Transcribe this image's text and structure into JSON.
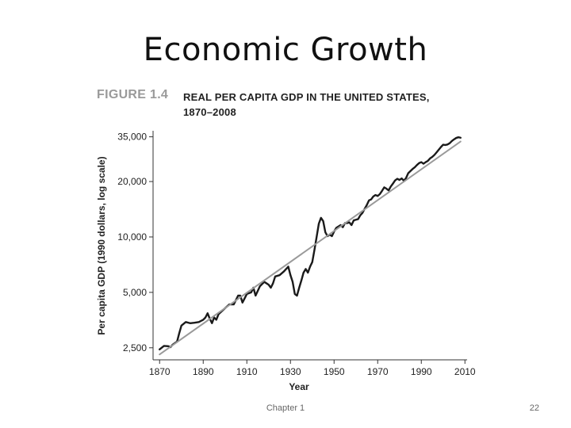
{
  "slide": {
    "title": "Economic Growth",
    "footer": "Chapter 1",
    "page_number": "22"
  },
  "figure": {
    "label": "FIGURE 1.4",
    "title_line1": "REAL PER CAPITA GDP IN THE UNITED STATES,",
    "title_line2": "1870–2008"
  },
  "chart_data": {
    "type": "line",
    "title": "REAL PER CAPITA GDP IN THE UNITED STATES, 1870–2008",
    "xlabel": "Year",
    "ylabel": "Per capita GDP (1990 dollars, log scale)",
    "y_scale": "log",
    "xlim": [
      1867,
      2011
    ],
    "ylim": [
      2150,
      37000
    ],
    "x_ticks": [
      1870,
      1890,
      1910,
      1930,
      1950,
      1970,
      1990,
      2010
    ],
    "x_tick_labels": [
      "1870",
      "1890",
      "1910",
      "1930",
      "1950",
      "1970",
      "1990",
      "2010"
    ],
    "y_ticks": [
      2500,
      5000,
      10000,
      20000,
      35000
    ],
    "y_tick_labels": [
      "2,500",
      "5,000",
      "10,000",
      "20,000",
      "35,000"
    ],
    "grid": false,
    "series": [
      {
        "style": "actual",
        "color": "#1a1a1a",
        "points": [
          [
            1870,
            2450
          ],
          [
            1872,
            2560
          ],
          [
            1874,
            2550
          ],
          [
            1875,
            2520
          ],
          [
            1876,
            2600
          ],
          [
            1878,
            2700
          ],
          [
            1879,
            3000
          ],
          [
            1880,
            3300
          ],
          [
            1882,
            3450
          ],
          [
            1884,
            3400
          ],
          [
            1886,
            3420
          ],
          [
            1888,
            3450
          ],
          [
            1890,
            3550
          ],
          [
            1891,
            3650
          ],
          [
            1892,
            3850
          ],
          [
            1893,
            3600
          ],
          [
            1894,
            3400
          ],
          [
            1895,
            3650
          ],
          [
            1896,
            3550
          ],
          [
            1897,
            3800
          ],
          [
            1899,
            4000
          ],
          [
            1900,
            4100
          ],
          [
            1902,
            4300
          ],
          [
            1904,
            4300
          ],
          [
            1906,
            4800
          ],
          [
            1907,
            4800
          ],
          [
            1908,
            4400
          ],
          [
            1910,
            4900
          ],
          [
            1912,
            5000
          ],
          [
            1913,
            5300
          ],
          [
            1914,
            4800
          ],
          [
            1916,
            5400
          ],
          [
            1918,
            5700
          ],
          [
            1919,
            5600
          ],
          [
            1920,
            5500
          ],
          [
            1921,
            5300
          ],
          [
            1922,
            5600
          ],
          [
            1923,
            6100
          ],
          [
            1925,
            6200
          ],
          [
            1927,
            6500
          ],
          [
            1929,
            6900
          ],
          [
            1930,
            6200
          ],
          [
            1931,
            5700
          ],
          [
            1932,
            4900
          ],
          [
            1933,
            4800
          ],
          [
            1934,
            5300
          ],
          [
            1935,
            5800
          ],
          [
            1936,
            6400
          ],
          [
            1937,
            6700
          ],
          [
            1938,
            6400
          ],
          [
            1939,
            6900
          ],
          [
            1940,
            7300
          ],
          [
            1941,
            8500
          ],
          [
            1942,
            10000
          ],
          [
            1943,
            11800
          ],
          [
            1944,
            12700
          ],
          [
            1945,
            12200
          ],
          [
            1946,
            10600
          ],
          [
            1947,
            10100
          ],
          [
            1948,
            10300
          ],
          [
            1949,
            10100
          ],
          [
            1950,
            10700
          ],
          [
            1951,
            11200
          ],
          [
            1952,
            11400
          ],
          [
            1953,
            11600
          ],
          [
            1954,
            11300
          ],
          [
            1955,
            11900
          ],
          [
            1956,
            11900
          ],
          [
            1957,
            12000
          ],
          [
            1958,
            11600
          ],
          [
            1959,
            12300
          ],
          [
            1960,
            12400
          ],
          [
            1961,
            12500
          ],
          [
            1962,
            13100
          ],
          [
            1963,
            13500
          ],
          [
            1964,
            14200
          ],
          [
            1965,
            14900
          ],
          [
            1966,
            15800
          ],
          [
            1967,
            16000
          ],
          [
            1968,
            16600
          ],
          [
            1969,
            16900
          ],
          [
            1970,
            16700
          ],
          [
            1971,
            17100
          ],
          [
            1972,
            17800
          ],
          [
            1973,
            18600
          ],
          [
            1974,
            18300
          ],
          [
            1975,
            17900
          ],
          [
            1976,
            18800
          ],
          [
            1977,
            19500
          ],
          [
            1978,
            20300
          ],
          [
            1979,
            20700
          ],
          [
            1980,
            20400
          ],
          [
            1981,
            20800
          ],
          [
            1982,
            20200
          ],
          [
            1983,
            20900
          ],
          [
            1984,
            22200
          ],
          [
            1985,
            22800
          ],
          [
            1986,
            23400
          ],
          [
            1987,
            23900
          ],
          [
            1988,
            24600
          ],
          [
            1989,
            25200
          ],
          [
            1990,
            25500
          ],
          [
            1991,
            25000
          ],
          [
            1992,
            25500
          ],
          [
            1993,
            25900
          ],
          [
            1994,
            26700
          ],
          [
            1995,
            27200
          ],
          [
            1996,
            27900
          ],
          [
            1997,
            28800
          ],
          [
            1998,
            29800
          ],
          [
            1999,
            30800
          ],
          [
            2000,
            31700
          ],
          [
            2001,
            31600
          ],
          [
            2002,
            31800
          ],
          [
            2003,
            32300
          ],
          [
            2004,
            33200
          ],
          [
            2005,
            33900
          ],
          [
            2006,
            34500
          ],
          [
            2007,
            34800
          ],
          [
            2008,
            34600
          ]
        ]
      },
      {
        "style": "trend",
        "color": "#9a9a9a",
        "points": [
          [
            1870,
            2300
          ],
          [
            2008,
            33000
          ]
        ]
      }
    ]
  }
}
